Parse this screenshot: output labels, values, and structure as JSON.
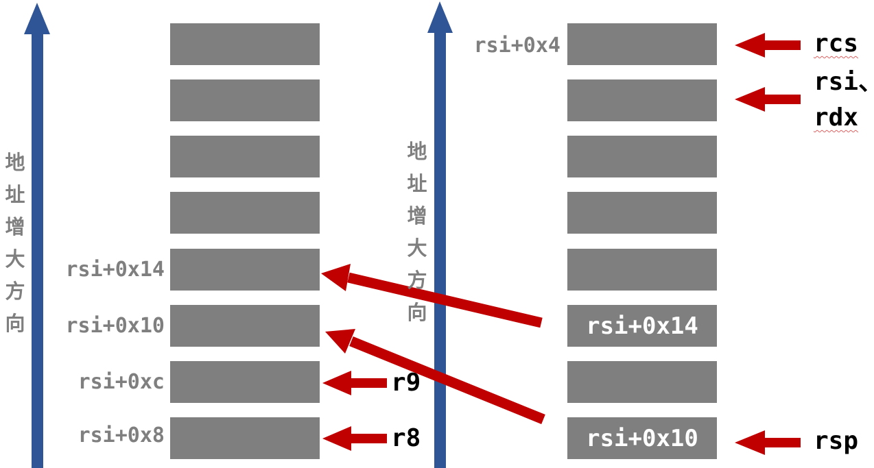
{
  "colors": {
    "cell": "#7f7f7f",
    "label_gray": "#7f7f7f",
    "red_arrow": "#c00000",
    "blue_arrow": "#2f5597",
    "register_text": "#000000"
  },
  "axis_text": "地址增大方向",
  "left_stack": {
    "labels": [
      "rsi+0x14",
      "rsi+0x10",
      "rsi+0xc",
      "rsi+0x8"
    ],
    "registers": [
      "r9",
      "r8"
    ]
  },
  "right_stack": {
    "top_label": "rsi+0x4",
    "cell_texts": [
      "rsi+0x14",
      "rsi+0x10"
    ],
    "registers": {
      "rcs": "rcs",
      "rsi_line": "rsi、",
      "rdx_line": "rdx",
      "rsp": "rsp"
    }
  }
}
